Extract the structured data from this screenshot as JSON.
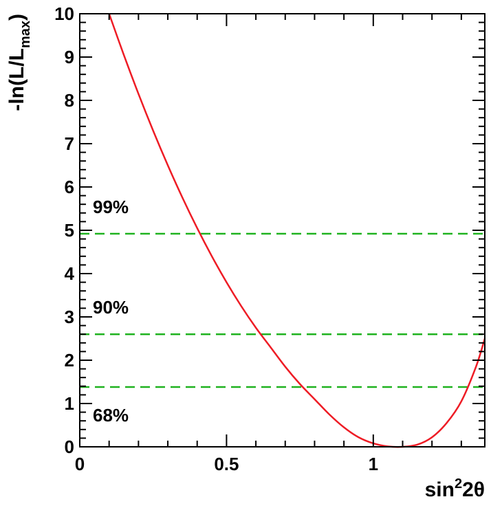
{
  "chart_data": {
    "type": "line",
    "xlabel": {
      "base": "sin",
      "sup": "2",
      "rest": "2θ"
    },
    "ylabel": {
      "prefix": "-ln(L/L",
      "sub": "max",
      "suffix": ")"
    },
    "xlim": [
      0,
      1.38
    ],
    "ylim": [
      0,
      10
    ],
    "x_ticks": [
      {
        "value": 0,
        "label": "0"
      },
      {
        "value": 0.5,
        "label": "0.5"
      },
      {
        "value": 1,
        "label": "1"
      }
    ],
    "y_ticks": [
      {
        "value": 0,
        "label": "0"
      },
      {
        "value": 1,
        "label": "1"
      },
      {
        "value": 2,
        "label": "2"
      },
      {
        "value": 3,
        "label": "3"
      },
      {
        "value": 4,
        "label": "4"
      },
      {
        "value": 5,
        "label": "5"
      },
      {
        "value": 6,
        "label": "6"
      },
      {
        "value": 7,
        "label": "7"
      },
      {
        "value": 8,
        "label": "8"
      },
      {
        "value": 9,
        "label": "9"
      },
      {
        "value": 10,
        "label": "10"
      }
    ],
    "grid": false,
    "series": [
      {
        "color": "#ee1c25",
        "x": [
          0.1,
          0.15,
          0.2,
          0.25,
          0.3,
          0.35,
          0.4,
          0.45,
          0.5,
          0.55,
          0.6,
          0.65,
          0.7,
          0.75,
          0.8,
          0.85,
          0.9,
          0.95,
          1.0,
          1.05,
          1.1,
          1.15,
          1.2,
          1.25,
          1.3,
          1.35,
          1.38
        ],
        "y": [
          10.0,
          9.05,
          8.15,
          7.3,
          6.5,
          5.75,
          5.05,
          4.4,
          3.8,
          3.25,
          2.75,
          2.3,
          1.85,
          1.45,
          1.1,
          0.75,
          0.45,
          0.22,
          0.08,
          0.01,
          0.0,
          0.05,
          0.22,
          0.55,
          1.05,
          1.85,
          2.5
        ]
      }
    ],
    "confidence_levels": [
      {
        "label": "99%",
        "value": 4.92,
        "color": "#1fb21f"
      },
      {
        "label": "90%",
        "value": 2.6,
        "color": "#1fb21f"
      },
      {
        "label": "68%",
        "value": 1.38,
        "color": "#1fb21f"
      }
    ]
  }
}
